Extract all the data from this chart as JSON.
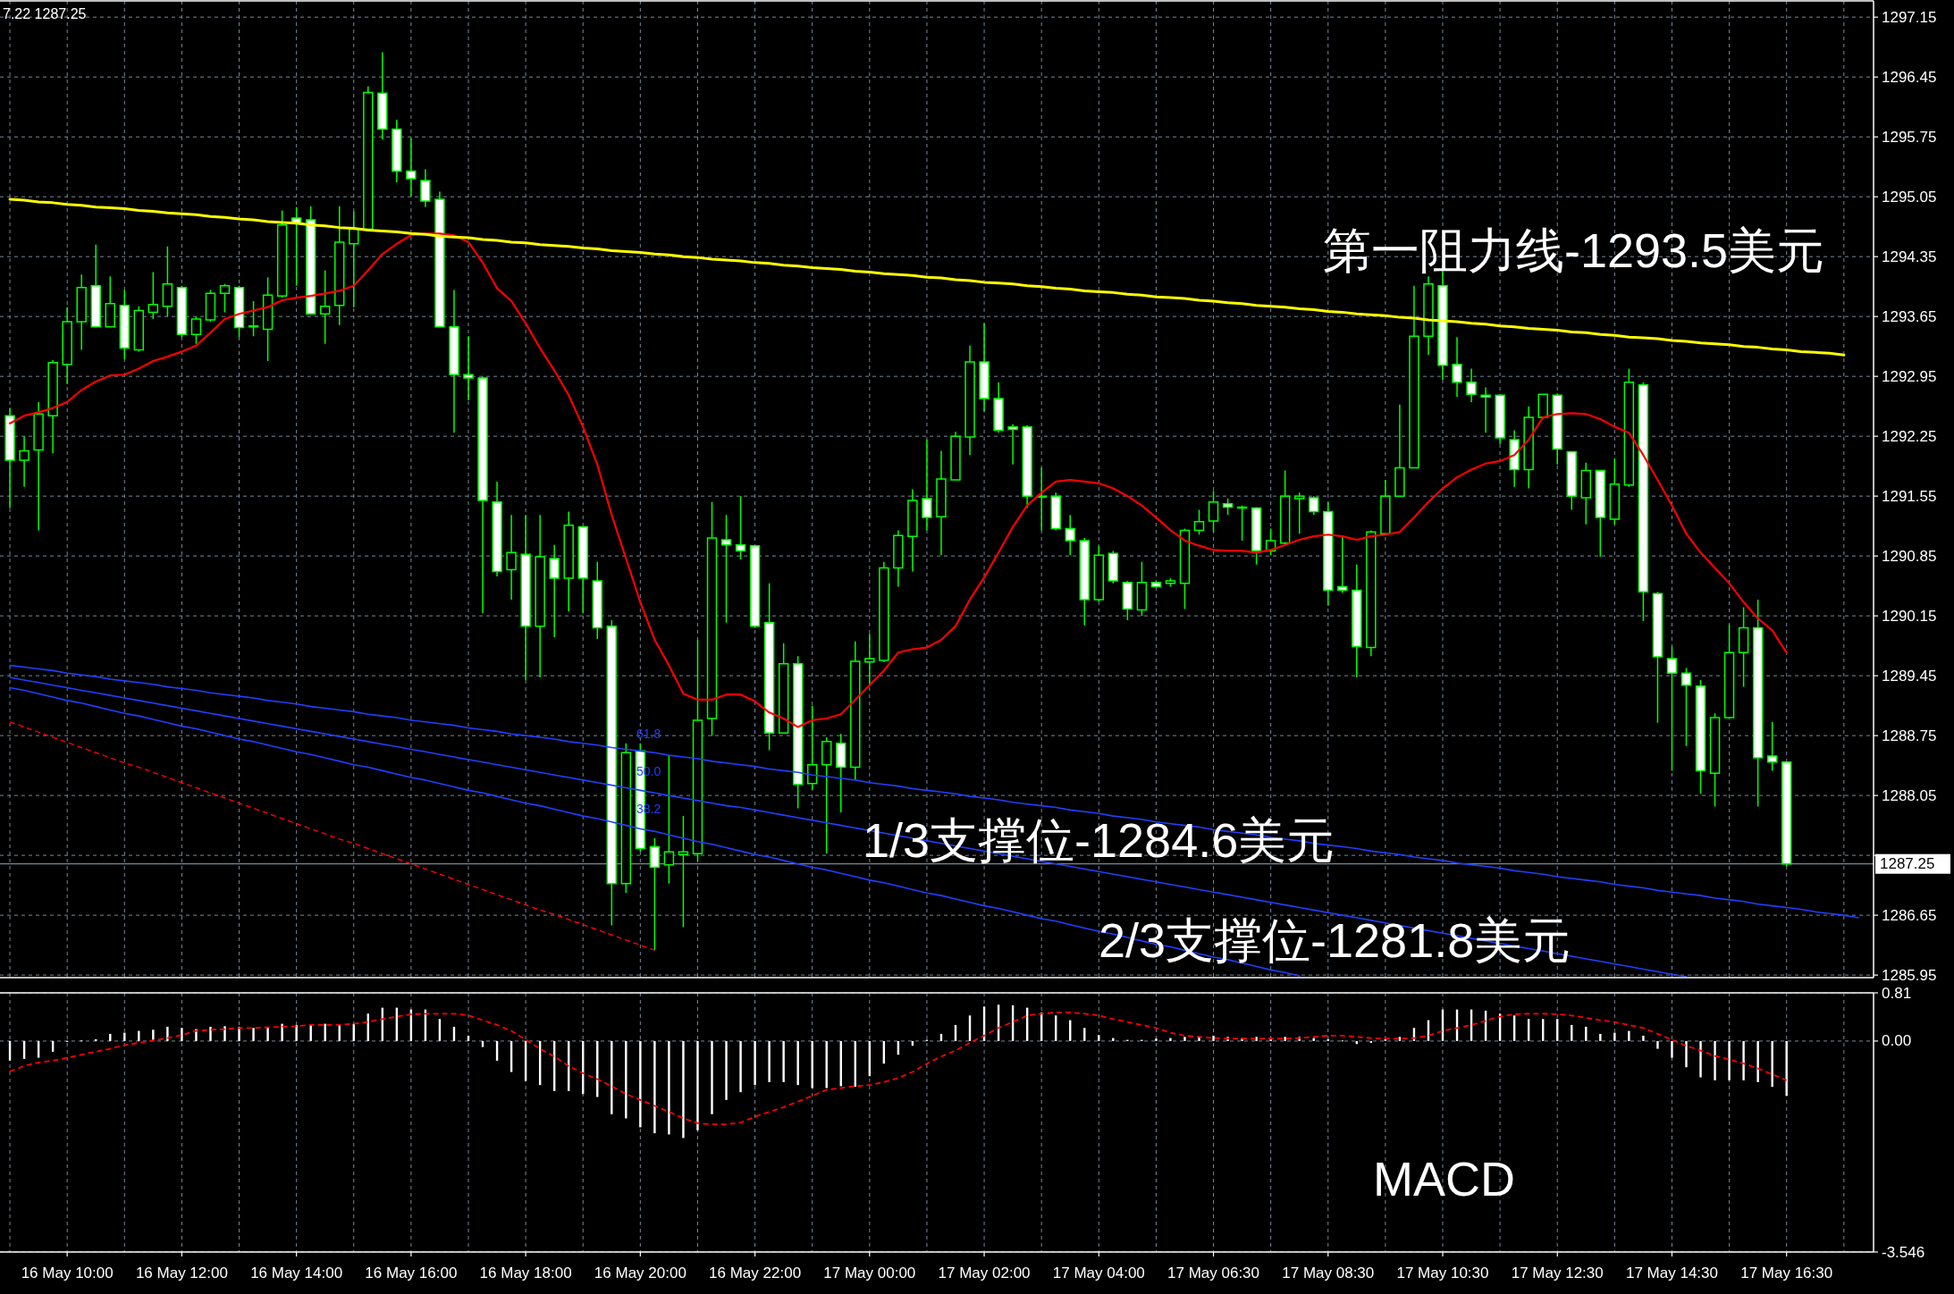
{
  "chart_data": [
    {
      "type": "candlestick",
      "color": "#00ff00",
      "categories": [
        null,
        null,
        null,
        null,
        null,
        null,
        null,
        null,
        null,
        null,
        null,
        null,
        null,
        null,
        null,
        null,
        null,
        null,
        null,
        null,
        null,
        null,
        null,
        null,
        null,
        null,
        null,
        null,
        null,
        null,
        null,
        null,
        null,
        null,
        null,
        null,
        null,
        null,
        null,
        null,
        null,
        null,
        null,
        null,
        null,
        null,
        null,
        null,
        null,
        null,
        null,
        null,
        null,
        null,
        null,
        null,
        null,
        null,
        null,
        null,
        null,
        null,
        null,
        null,
        null,
        null,
        null,
        null,
        null,
        null,
        null,
        null,
        null,
        null,
        null,
        null,
        null,
        null,
        null,
        null,
        null,
        null,
        null,
        null,
        null,
        null,
        null,
        null,
        null,
        null,
        null,
        null,
        null,
        null,
        null,
        null,
        null,
        null,
        null,
        null,
        null,
        null,
        null,
        null,
        null,
        null,
        null,
        null,
        null,
        null,
        null,
        null,
        null,
        null,
        null,
        null,
        null,
        null,
        null,
        null,
        null,
        null,
        null,
        null,
        null,
        null,
        null,
        null,
        null,
        null
      ],
      "ohlc": [
        [
          1292.49,
          1292.58,
          1291.41,
          1291.97
        ],
        [
          1291.97,
          1292.25,
          1291.66,
          1292.08
        ],
        [
          1292.09,
          1292.65,
          1291.15,
          1292.51
        ],
        [
          1292.49,
          1293.14,
          1292.05,
          1293.11
        ],
        [
          1293.09,
          1293.76,
          1292.86,
          1293.59
        ],
        [
          1293.59,
          1294.14,
          1293.26,
          1293.99
        ],
        [
          1294.01,
          1294.49,
          1293.52,
          1293.53
        ],
        [
          1293.53,
          1294.12,
          1293.52,
          1293.8
        ],
        [
          1293.78,
          1293.96,
          1293.15,
          1293.28
        ],
        [
          1293.26,
          1293.77,
          1293.24,
          1293.72
        ],
        [
          1293.7,
          1294.17,
          1293.62,
          1293.79
        ],
        [
          1293.77,
          1294.47,
          1293.65,
          1294.03
        ],
        [
          1293.99,
          1294.01,
          1293.41,
          1293.44
        ],
        [
          1293.44,
          1293.65,
          1293.33,
          1293.62
        ],
        [
          1293.61,
          1293.96,
          1293.59,
          1293.92
        ],
        [
          1293.92,
          1294.03,
          1293.7,
          1294.01
        ],
        [
          1293.99,
          1294.01,
          1293.41,
          1293.52
        ],
        [
          1293.53,
          1293.83,
          1293.42,
          1293.54
        ],
        [
          1293.5,
          1294.11,
          1293.13,
          1293.9
        ],
        [
          1293.89,
          1294.89,
          1293.87,
          1294.72
        ],
        [
          1294.8,
          1294.93,
          1294.01,
          1294.74
        ],
        [
          1294.78,
          1294.94,
          1293.67,
          1293.68
        ],
        [
          1293.68,
          1294.19,
          1293.33,
          1293.77
        ],
        [
          1293.78,
          1294.94,
          1293.55,
          1294.52
        ],
        [
          1294.5,
          1294.88,
          1293.76,
          1294.67
        ],
        [
          1294.67,
          1296.34,
          1294.67,
          1296.27
        ],
        [
          1296.26,
          1296.74,
          1295.72,
          1295.84
        ],
        [
          1295.84,
          1295.95,
          1295.22,
          1295.35
        ],
        [
          1295.35,
          1295.73,
          1295.06,
          1295.26
        ],
        [
          1295.24,
          1295.37,
          1294.93,
          1295.0
        ],
        [
          1295.02,
          1295.11,
          1293.53,
          1293.53
        ],
        [
          1293.53,
          1293.96,
          1292.29,
          1292.97
        ],
        [
          1292.97,
          1293.42,
          1292.67,
          1292.93
        ],
        [
          1292.93,
          1292.95,
          1290.18,
          1291.5
        ],
        [
          1291.48,
          1291.72,
          1290.61,
          1290.67
        ],
        [
          1290.69,
          1291.33,
          1290.34,
          1290.89
        ],
        [
          1290.87,
          1291.33,
          1289.4,
          1290.03
        ],
        [
          1290.03,
          1291.33,
          1289.43,
          1290.84
        ],
        [
          1290.82,
          1290.98,
          1289.9,
          1290.59
        ],
        [
          1290.59,
          1291.37,
          1290.2,
          1291.21
        ],
        [
          1291.19,
          1291.2,
          1290.18,
          1290.59
        ],
        [
          1290.56,
          1290.78,
          1289.88,
          1290.01
        ],
        [
          1290.03,
          1290.1,
          1286.53,
          1287.02
        ],
        [
          1287.02,
          1288.66,
          1286.91,
          1288.55
        ],
        [
          1288.57,
          1288.66,
          1287.39,
          1287.43
        ],
        [
          1287.45,
          1287.55,
          1286.24,
          1287.21
        ],
        [
          1287.24,
          1288.51,
          1287.02,
          1287.39
        ],
        [
          1287.36,
          1287.81,
          1286.51,
          1287.39
        ],
        [
          1287.37,
          1289.87,
          1287.28,
          1288.93
        ],
        [
          1288.95,
          1291.48,
          1288.75,
          1291.06
        ],
        [
          1291.04,
          1291.33,
          1290.07,
          1290.98
        ],
        [
          1290.98,
          1291.55,
          1290.81,
          1290.91
        ],
        [
          1290.97,
          1290.98,
          1290.01,
          1290.03
        ],
        [
          1290.07,
          1290.53,
          1288.58,
          1288.78
        ],
        [
          1288.78,
          1289.83,
          1288.77,
          1289.59
        ],
        [
          1289.59,
          1289.68,
          1287.9,
          1288.18
        ],
        [
          1288.19,
          1289.1,
          1288.12,
          1288.41
        ],
        [
          1288.41,
          1288.73,
          1287.37,
          1288.68
        ],
        [
          1288.66,
          1288.77,
          1287.85,
          1288.38
        ],
        [
          1288.38,
          1289.85,
          1288.23,
          1289.62
        ],
        [
          1289.61,
          1289.94,
          1289.35,
          1289.65
        ],
        [
          1289.63,
          1290.78,
          1289.61,
          1290.71
        ],
        [
          1290.71,
          1291.15,
          1290.49,
          1291.09
        ],
        [
          1291.08,
          1291.63,
          1290.67,
          1291.5
        ],
        [
          1291.52,
          1292.21,
          1291.15,
          1291.3
        ],
        [
          1291.31,
          1292.08,
          1290.86,
          1291.75
        ],
        [
          1291.74,
          1292.3,
          1291.74,
          1292.25
        ],
        [
          1292.24,
          1293.31,
          1292.03,
          1293.12
        ],
        [
          1293.12,
          1293.57,
          1292.54,
          1292.69
        ],
        [
          1292.69,
          1292.88,
          1292.29,
          1292.32
        ],
        [
          1292.36,
          1292.39,
          1291.92,
          1292.33
        ],
        [
          1292.36,
          1292.38,
          1291.41,
          1291.55
        ],
        [
          1291.55,
          1291.88,
          1291.15,
          1291.54
        ],
        [
          1291.55,
          1291.59,
          1291.15,
          1291.17
        ],
        [
          1291.17,
          1291.33,
          1290.86,
          1291.03
        ],
        [
          1291.03,
          1291.06,
          1290.04,
          1290.34
        ],
        [
          1290.34,
          1290.97,
          1290.32,
          1290.86
        ],
        [
          1290.88,
          1290.91,
          1290.53,
          1290.56
        ],
        [
          1290.54,
          1290.56,
          1290.1,
          1290.23
        ],
        [
          1290.22,
          1290.78,
          1290.15,
          1290.54
        ],
        [
          1290.54,
          1290.56,
          1290.48,
          1290.49
        ],
        [
          1290.53,
          1290.59,
          1290.49,
          1290.56
        ],
        [
          1290.53,
          1291.17,
          1290.23,
          1291.15
        ],
        [
          1291.15,
          1291.39,
          1291.1,
          1291.25
        ],
        [
          1291.26,
          1291.61,
          1291.13,
          1291.48
        ],
        [
          1291.46,
          1291.52,
          1291.33,
          1291.42
        ],
        [
          1291.42,
          1291.44,
          1291.03,
          1291.41
        ],
        [
          1291.41,
          1291.42,
          1290.75,
          1290.91
        ],
        [
          1290.91,
          1291.17,
          1290.86,
          1291.03
        ],
        [
          1291.0,
          1291.85,
          1290.98,
          1291.55
        ],
        [
          1291.52,
          1291.59,
          1291.11,
          1291.55
        ],
        [
          1291.53,
          1291.55,
          1291.33,
          1291.37
        ],
        [
          1291.37,
          1291.48,
          1290.27,
          1290.45
        ],
        [
          1290.49,
          1291.08,
          1290.42,
          1290.45
        ],
        [
          1290.45,
          1290.75,
          1289.43,
          1289.79
        ],
        [
          1289.78,
          1291.15,
          1289.68,
          1291.13
        ],
        [
          1291.11,
          1291.74,
          1291.11,
          1291.55
        ],
        [
          1291.55,
          1292.62,
          1291.55,
          1291.88
        ],
        [
          1291.88,
          1294.01,
          1291.88,
          1293.42
        ],
        [
          1293.42,
          1294.12,
          1293.2,
          1294.03
        ],
        [
          1294.01,
          1294.19,
          1292.91,
          1293.08
        ],
        [
          1293.09,
          1293.41,
          1292.71,
          1292.88
        ],
        [
          1292.88,
          1293.04,
          1292.65,
          1292.74
        ],
        [
          1292.73,
          1292.82,
          1292.29,
          1292.71
        ],
        [
          1292.73,
          1292.74,
          1292.16,
          1292.23
        ],
        [
          1292.21,
          1292.32,
          1291.66,
          1291.86
        ],
        [
          1291.86,
          1292.6,
          1291.64,
          1292.47
        ],
        [
          1292.47,
          1292.74,
          1292.45,
          1292.74
        ],
        [
          1292.73,
          1292.75,
          1291.92,
          1292.1
        ],
        [
          1292.07,
          1292.07,
          1291.39,
          1291.55
        ],
        [
          1291.53,
          1291.94,
          1291.22,
          1291.85
        ],
        [
          1291.85,
          1291.85,
          1290.84,
          1291.3
        ],
        [
          1291.28,
          1291.99,
          1291.22,
          1291.69
        ],
        [
          1291.68,
          1293.04,
          1291.66,
          1292.88
        ],
        [
          1292.85,
          1292.88,
          1290.09,
          1290.43
        ],
        [
          1290.41,
          1290.43,
          1288.9,
          1289.67
        ],
        [
          1289.65,
          1289.79,
          1288.34,
          1289.48
        ],
        [
          1289.48,
          1289.54,
          1288.63,
          1289.34
        ],
        [
          1289.33,
          1289.4,
          1288.07,
          1288.34
        ],
        [
          1288.31,
          1289.01,
          1287.92,
          1288.96
        ],
        [
          1288.96,
          1290.05,
          1288.96,
          1289.72
        ],
        [
          1289.72,
          1290.25,
          1289.32,
          1290.01
        ],
        [
          1290.01,
          1290.34,
          1287.92,
          1288.49
        ],
        [
          1288.51,
          1288.91,
          1288.34,
          1288.44
        ],
        [
          1288.44,
          1288.44,
          1287.22,
          1287.25
        ],
        null,
        null,
        null,
        null,
        null
      ],
      "series": [
        {
          "type": "line",
          "color": "#ff0000",
          "values": [
            1292.4,
            1292.49,
            1292.53,
            1292.58,
            1292.65,
            1292.79,
            1292.89,
            1292.96,
            1292.97,
            1293.04,
            1293.13,
            1293.18,
            1293.24,
            1293.31,
            1293.46,
            1293.62,
            1293.68,
            1293.72,
            1293.76,
            1293.84,
            1293.87,
            1293.89,
            1293.92,
            1293.95,
            1294.01,
            1294.19,
            1294.38,
            1294.5,
            1294.6,
            1294.62,
            1294.62,
            1294.6,
            1294.52,
            1294.28,
            1293.98,
            1293.83,
            1293.57,
            1293.28,
            1293.02,
            1292.73,
            1292.36,
            1291.92,
            1291.33,
            1290.82,
            1290.31,
            1289.87,
            1289.57,
            1289.24,
            1289.17,
            1289.17,
            1289.23,
            1289.23,
            1289.15,
            1289.02,
            1288.95,
            1288.85,
            1288.93,
            1288.95,
            1289.0,
            1289.17,
            1289.34,
            1289.51,
            1289.72,
            1289.76,
            1289.78,
            1289.87,
            1290.03,
            1290.34,
            1290.6,
            1290.89,
            1291.19,
            1291.44,
            1291.59,
            1291.72,
            1291.74,
            1291.72,
            1291.7,
            1291.64,
            1291.55,
            1291.44,
            1291.3,
            1291.15,
            1291.03,
            1290.97,
            1290.92,
            1290.91,
            1290.91,
            1290.89,
            1290.92,
            1290.98,
            1291.04,
            1291.08,
            1291.1,
            1291.08,
            1291.04,
            1291.08,
            1291.1,
            1291.13,
            1291.3,
            1291.48,
            1291.64,
            1291.77,
            1291.86,
            1291.93,
            1291.96,
            1292.03,
            1292.21,
            1292.47,
            1292.51,
            1292.52,
            1292.51,
            1292.45,
            1292.36,
            1292.29,
            1292.03,
            1291.74,
            1291.44,
            1291.11,
            1290.89,
            1290.71,
            1290.53,
            1290.31,
            1290.12,
            1289.98,
            1289.72,
            null,
            null,
            null,
            null,
            null
          ]
        },
        {
          "type": "line",
          "color": "#ffff00",
          "values": [
            1295.02,
            1295.01,
            1294.99,
            1294.98,
            1294.96,
            1294.95,
            1294.93,
            1294.92,
            1294.91,
            1294.89,
            1294.88,
            1294.86,
            1294.85,
            1294.84,
            1294.82,
            1294.81,
            1294.79,
            1294.78,
            1294.76,
            1294.75,
            1294.74,
            1294.72,
            1294.71,
            1294.69,
            1294.68,
            1294.66,
            1294.65,
            1294.64,
            1294.62,
            1294.61,
            1294.59,
            1294.58,
            1294.57,
            1294.55,
            1294.54,
            1294.52,
            1294.51,
            1294.49,
            1294.48,
            1294.47,
            1294.45,
            1294.44,
            1294.42,
            1294.41,
            1294.4,
            1294.38,
            1294.37,
            1294.35,
            1294.34,
            1294.32,
            1294.31,
            1294.3,
            1294.28,
            1294.27,
            1294.25,
            1294.24,
            1294.22,
            1294.21,
            1294.2,
            1294.18,
            1294.17,
            1294.15,
            1294.14,
            1294.13,
            1294.11,
            1294.1,
            1294.08,
            1294.07,
            1294.05,
            1294.04,
            1294.03,
            1294.01,
            1294.0,
            1293.98,
            1293.97,
            1293.95,
            1293.94,
            1293.93,
            1293.91,
            1293.9,
            1293.88,
            1293.87,
            1293.86,
            1293.84,
            1293.83,
            1293.81,
            1293.8,
            1293.78,
            1293.77,
            1293.76,
            1293.74,
            1293.73,
            1293.71,
            1293.7,
            1293.68,
            1293.67,
            1293.66,
            1293.64,
            1293.63,
            1293.61,
            1293.6,
            1293.59,
            1293.57,
            1293.56,
            1293.54,
            1293.53,
            1293.51,
            1293.5,
            1293.49,
            1293.47,
            1293.46,
            1293.44,
            1293.43,
            1293.41,
            1293.4,
            1293.39,
            1293.37,
            1293.36,
            1293.34,
            1293.33,
            1293.32,
            1293.3,
            1293.29,
            1293.27,
            1293.26,
            1293.24,
            1293.23,
            1293.22,
            1293.2,
            null
          ]
        },
        {
          "type": "line",
          "color": "#2040ff",
          "values": [
            1289.57,
            1289.55,
            1289.53,
            1289.51,
            1289.48,
            1289.46,
            1289.44,
            1289.41,
            1289.39,
            1289.37,
            1289.35,
            1289.32,
            1289.3,
            1289.28,
            1289.25,
            1289.23,
            1289.21,
            1289.19,
            1289.16,
            1289.14,
            1289.12,
            1289.09,
            1289.07,
            1289.05,
            1289.03,
            1289.0,
            1288.98,
            1288.96,
            1288.93,
            1288.91,
            1288.89,
            1288.87,
            1288.84,
            1288.82,
            1288.8,
            1288.77,
            1288.75,
            1288.73,
            1288.71,
            1288.68,
            1288.66,
            1288.64,
            1288.61,
            1288.59,
            1288.57,
            1288.55,
            1288.52,
            1288.5,
            1288.48,
            1288.45,
            1288.43,
            1288.41,
            1288.39,
            1288.36,
            1288.34,
            1288.32,
            1288.29,
            1288.27,
            1288.25,
            1288.23,
            1288.2,
            1288.18,
            1288.16,
            1288.13,
            1288.11,
            1288.09,
            1288.07,
            1288.04,
            1288.02,
            1288.0,
            1287.97,
            1287.95,
            1287.93,
            1287.91,
            1287.88,
            1287.86,
            1287.84,
            1287.81,
            1287.79,
            1287.77,
            1287.74,
            1287.72,
            1287.7,
            1287.68,
            1287.65,
            1287.63,
            1287.61,
            1287.59,
            1287.56,
            1287.54,
            1287.52,
            1287.49,
            1287.47,
            1287.45,
            1287.43,
            1287.4,
            1287.38,
            1287.36,
            1287.33,
            1287.31,
            1287.29,
            1287.26,
            1287.24,
            1287.22,
            1287.2,
            1287.17,
            1287.15,
            1287.13,
            1287.1,
            1287.08,
            1287.06,
            1287.04,
            1287.01,
            1286.99,
            1286.97,
            1286.94,
            1286.92,
            1286.9,
            1286.88,
            1286.85,
            1286.83,
            1286.81,
            1286.78,
            1286.76,
            1286.74,
            1286.72,
            1286.69,
            1286.67,
            1286.65,
            1286.62
          ]
        },
        {
          "type": "line",
          "color": "#2040ff",
          "values": [
            1289.43,
            1289.4,
            1289.37,
            1289.34,
            1289.31,
            1289.28,
            1289.25,
            1289.22,
            1289.19,
            1289.16,
            1289.13,
            1289.1,
            1289.07,
            1289.04,
            1289.01,
            1288.98,
            1288.95,
            1288.92,
            1288.89,
            1288.86,
            1288.83,
            1288.8,
            1288.77,
            1288.74,
            1288.71,
            1288.68,
            1288.65,
            1288.62,
            1288.59,
            1288.56,
            1288.53,
            1288.5,
            1288.47,
            1288.44,
            1288.41,
            1288.38,
            1288.35,
            1288.32,
            1288.29,
            1288.26,
            1288.23,
            1288.2,
            1288.17,
            1288.14,
            1288.11,
            1288.08,
            1288.05,
            1288.02,
            1287.99,
            1287.96,
            1287.93,
            1287.91,
            1287.88,
            1287.85,
            1287.82,
            1287.79,
            1287.76,
            1287.73,
            1287.7,
            1287.67,
            1287.64,
            1287.61,
            1287.58,
            1287.55,
            1287.52,
            1287.49,
            1287.46,
            1287.43,
            1287.4,
            1287.37,
            1287.34,
            1287.31,
            1287.28,
            1287.25,
            1287.22,
            1287.19,
            1287.16,
            1287.13,
            1287.1,
            1287.07,
            1287.04,
            1287.01,
            1286.98,
            1286.95,
            1286.92,
            1286.89,
            1286.86,
            1286.83,
            1286.8,
            1286.77,
            1286.74,
            1286.71,
            1286.68,
            1286.65,
            1286.62,
            1286.59,
            1286.56,
            1286.53,
            1286.5,
            1286.47,
            1286.44,
            1286.41,
            1286.38,
            1286.35,
            1286.32,
            1286.29,
            1286.26,
            1286.23,
            1286.2,
            1286.17,
            1286.14,
            1286.11,
            1286.08,
            1286.05,
            1286.02,
            1285.99,
            1285.96,
            1285.93,
            null,
            null,
            null,
            null,
            null,
            null,
            null,
            null,
            null,
            null,
            null,
            null
          ]
        },
        {
          "type": "line",
          "color": "#2040ff",
          "values": [
            1289.31,
            1289.28,
            1289.24,
            1289.2,
            1289.16,
            1289.13,
            1289.09,
            1289.05,
            1289.01,
            1288.98,
            1288.94,
            1288.9,
            1288.86,
            1288.83,
            1288.79,
            1288.75,
            1288.71,
            1288.68,
            1288.64,
            1288.6,
            1288.56,
            1288.53,
            1288.49,
            1288.45,
            1288.41,
            1288.38,
            1288.34,
            1288.3,
            1288.26,
            1288.23,
            1288.19,
            1288.15,
            1288.11,
            1288.08,
            1288.04,
            1288.0,
            1287.96,
            1287.93,
            1287.89,
            1287.85,
            1287.81,
            1287.78,
            1287.74,
            1287.7,
            1287.66,
            1287.63,
            1287.59,
            1287.55,
            1287.51,
            1287.48,
            1287.44,
            1287.4,
            1287.36,
            1287.33,
            1287.29,
            1287.25,
            1287.21,
            1287.18,
            1287.14,
            1287.1,
            1287.06,
            1287.03,
            1286.99,
            1286.95,
            1286.91,
            1286.88,
            1286.84,
            1286.8,
            1286.76,
            1286.73,
            1286.69,
            1286.65,
            1286.61,
            1286.58,
            1286.54,
            1286.5,
            1286.46,
            1286.43,
            1286.39,
            1286.35,
            1286.31,
            1286.28,
            1286.24,
            1286.2,
            1286.16,
            1286.13,
            1286.09,
            1286.05,
            1286.01,
            1285.98,
            1285.94,
            null,
            null,
            null,
            null,
            null,
            null,
            null,
            null,
            null,
            null,
            null,
            null,
            null,
            null,
            null,
            null,
            null,
            null,
            null,
            null,
            null,
            null,
            null,
            null,
            null,
            null,
            null,
            null,
            null,
            null,
            null,
            null,
            null,
            null,
            null,
            null,
            null,
            null,
            null
          ]
        },
        {
          "type": "line",
          "color": "#ff0000",
          "line_style": "dashed",
          "values": [
            1288.91,
            1288.85,
            1288.79,
            1288.73,
            1288.67,
            1288.61,
            1288.55,
            1288.49,
            1288.43,
            1288.38,
            1288.32,
            1288.26,
            1288.2,
            1288.14,
            1288.08,
            1288.02,
            1287.96,
            1287.9,
            1287.84,
            1287.78,
            1287.72,
            1287.66,
            1287.6,
            1287.54,
            1287.49,
            1287.43,
            1287.37,
            1287.31,
            1287.25,
            1287.19,
            1287.13,
            1287.07,
            1287.01,
            1286.95,
            1286.89,
            1286.83,
            1286.77,
            1286.71,
            1286.66,
            1286.6,
            1286.54,
            1286.48,
            1286.42,
            1286.36,
            1286.3,
            1286.24,
            null,
            null,
            null,
            null,
            null,
            null,
            null,
            null,
            null,
            null,
            null,
            null,
            null,
            null,
            null,
            null,
            null,
            null,
            null,
            null,
            null,
            null,
            null,
            null,
            null,
            null,
            null,
            null,
            null,
            null,
            null,
            null,
            null,
            null,
            null,
            null,
            null,
            null,
            null,
            null,
            null,
            null,
            null,
            null,
            null,
            null,
            null,
            null,
            null,
            null,
            null,
            null,
            null,
            null,
            null,
            null,
            null,
            null,
            null,
            null,
            null,
            null,
            null,
            null,
            null,
            null,
            null,
            null,
            null,
            null,
            null,
            null,
            null,
            null,
            null,
            null,
            null,
            null,
            null,
            null,
            null,
            null,
            null,
            null
          ]
        }
      ],
      "ylim": [
        1285.92,
        1297.34
      ],
      "yticks": [
        1297.15,
        1296.45,
        1295.75,
        1295.05,
        1294.35,
        1293.65,
        1292.95,
        1292.25,
        1291.55,
        1290.85,
        1290.15,
        1289.45,
        1288.75,
        1288.05,
        {
          "value": 1287.35,
          "label": null
        },
        1286.65,
        1285.95
      ],
      "grid": true,
      "ref_lines": [
        {
          "axis": "y",
          "value": 1287.25,
          "label": "1287.25",
          "color": "#778899"
        }
      ],
      "annotations": [
        "7.22 1287.25",
        "第一阻力线-1293.5美元",
        "1/3支撑位-1284.6美元",
        "2/3支撑位-1281.8美元",
        "61.8",
        "50.0",
        "38.2"
      ]
    },
    {
      "type": "bar",
      "categories": [
        null,
        null,
        null,
        null,
        "16 May 10:00",
        null,
        null,
        null,
        null,
        null,
        null,
        null,
        "16 May 12:00",
        null,
        null,
        null,
        null,
        null,
        null,
        null,
        "16 May 14:00",
        null,
        null,
        null,
        null,
        null,
        null,
        null,
        "16 May 16:00",
        null,
        null,
        null,
        null,
        null,
        null,
        null,
        "16 May 18:00",
        null,
        null,
        null,
        null,
        null,
        null,
        null,
        "16 May 20:00",
        null,
        null,
        null,
        null,
        null,
        null,
        null,
        "16 May 22:00",
        null,
        null,
        null,
        null,
        null,
        null,
        null,
        "17 May 00:00",
        null,
        null,
        null,
        null,
        null,
        null,
        null,
        "17 May 02:00",
        null,
        null,
        null,
        null,
        null,
        null,
        null,
        "17 May 04:00",
        null,
        null,
        null,
        null,
        null,
        null,
        null,
        "17 May 06:30",
        null,
        null,
        null,
        null,
        null,
        null,
        null,
        "17 May 08:30",
        null,
        null,
        null,
        null,
        null,
        null,
        null,
        "17 May 10:30",
        null,
        null,
        null,
        null,
        null,
        null,
        null,
        "17 May 12:30",
        null,
        null,
        null,
        null,
        null,
        null,
        null,
        "17 May 14:30",
        null,
        null,
        null,
        null,
        null,
        null,
        null,
        "17 May 16:30",
        null,
        null,
        null,
        null,
        null
      ],
      "series": [
        {
          "color": "#ffffff",
          "values": [
            -0.33,
            -0.3,
            -0.28,
            -0.18,
            -0.01,
            0.01,
            0.03,
            0.12,
            0.14,
            0.17,
            0.19,
            0.24,
            0.22,
            0.2,
            0.24,
            0.25,
            0.24,
            0.22,
            0.24,
            0.29,
            0.27,
            0.27,
            0.29,
            0.27,
            0.29,
            0.46,
            0.56,
            0.56,
            0.53,
            0.53,
            0.37,
            0.24,
            0.09,
            -0.1,
            -0.33,
            -0.52,
            -0.67,
            -0.74,
            -0.84,
            -0.84,
            -0.89,
            -0.94,
            -1.23,
            -1.3,
            -1.45,
            -1.55,
            -1.57,
            -1.63,
            -1.5,
            -1.23,
            -0.99,
            -0.86,
            -0.74,
            -0.69,
            -0.69,
            -0.74,
            -0.79,
            -0.79,
            -0.76,
            -0.77,
            -0.59,
            -0.38,
            -0.23,
            -0.08,
            0.02,
            0.12,
            0.27,
            0.43,
            0.58,
            0.61,
            0.6,
            0.56,
            0.48,
            0.43,
            0.35,
            0.22,
            0.1,
            0.05,
            0.02,
            0.02,
            0.04,
            0.05,
            0.07,
            0.07,
            0.09,
            0.07,
            0.05,
            0.07,
            0.05,
            0.07,
            0.07,
            0.05,
            0.03,
            0.01,
            -0.05,
            -0.03,
            0.04,
            0.07,
            0.22,
            0.35,
            0.53,
            0.53,
            0.53,
            0.51,
            0.46,
            0.43,
            0.37,
            0.37,
            0.37,
            0.27,
            0.24,
            0.12,
            0.14,
            0.17,
            0.09,
            -0.13,
            -0.28,
            -0.44,
            -0.61,
            -0.66,
            -0.66,
            -0.66,
            -0.69,
            -0.77,
            -0.92,
            null,
            null,
            null,
            null,
            null
          ]
        },
        {
          "type": "line",
          "color": "#ff0000",
          "line_style": "dashed",
          "values": [
            -0.51,
            -0.42,
            -0.36,
            -0.33,
            -0.28,
            -0.23,
            -0.18,
            -0.13,
            -0.07,
            -0.03,
            0.01,
            0.05,
            0.1,
            0.17,
            0.19,
            0.2,
            0.22,
            0.22,
            0.23,
            0.24,
            0.25,
            0.27,
            0.27,
            0.27,
            0.29,
            0.32,
            0.37,
            0.41,
            0.45,
            0.46,
            0.46,
            0.46,
            0.43,
            0.35,
            0.27,
            0.17,
            0.02,
            -0.13,
            -0.26,
            -0.42,
            -0.54,
            -0.64,
            -0.76,
            -0.89,
            -0.99,
            -1.09,
            -1.19,
            -1.3,
            -1.38,
            -1.4,
            -1.4,
            -1.37,
            -1.27,
            -1.19,
            -1.11,
            -1.02,
            -0.92,
            -0.82,
            -0.79,
            -0.76,
            -0.74,
            -0.69,
            -0.62,
            -0.52,
            -0.38,
            -0.26,
            -0.16,
            -0.03,
            0.09,
            0.22,
            0.32,
            0.43,
            0.46,
            0.48,
            0.48,
            0.46,
            0.43,
            0.37,
            0.32,
            0.27,
            0.22,
            0.14,
            0.09,
            0.07,
            0.05,
            0.04,
            0.04,
            0.04,
            0.04,
            0.04,
            0.05,
            0.07,
            0.09,
            0.09,
            0.07,
            0.05,
            0.04,
            0.04,
            0.05,
            0.09,
            0.17,
            0.22,
            0.27,
            0.34,
            0.41,
            0.45,
            0.46,
            0.46,
            0.45,
            0.43,
            0.39,
            0.35,
            0.32,
            0.27,
            0.22,
            0.12,
            0.02,
            -0.08,
            -0.16,
            -0.25,
            -0.31,
            -0.38,
            -0.46,
            -0.56,
            -0.66,
            null,
            null,
            null,
            null,
            null
          ]
        }
      ],
      "ylim": [
        -3.546,
        0.81
      ],
      "yticks": [
        0.81,
        {
          "value": 0,
          "label": "0.00"
        },
        -3.546
      ],
      "grid": true,
      "annotations": [
        "MACD"
      ]
    }
  ]
}
